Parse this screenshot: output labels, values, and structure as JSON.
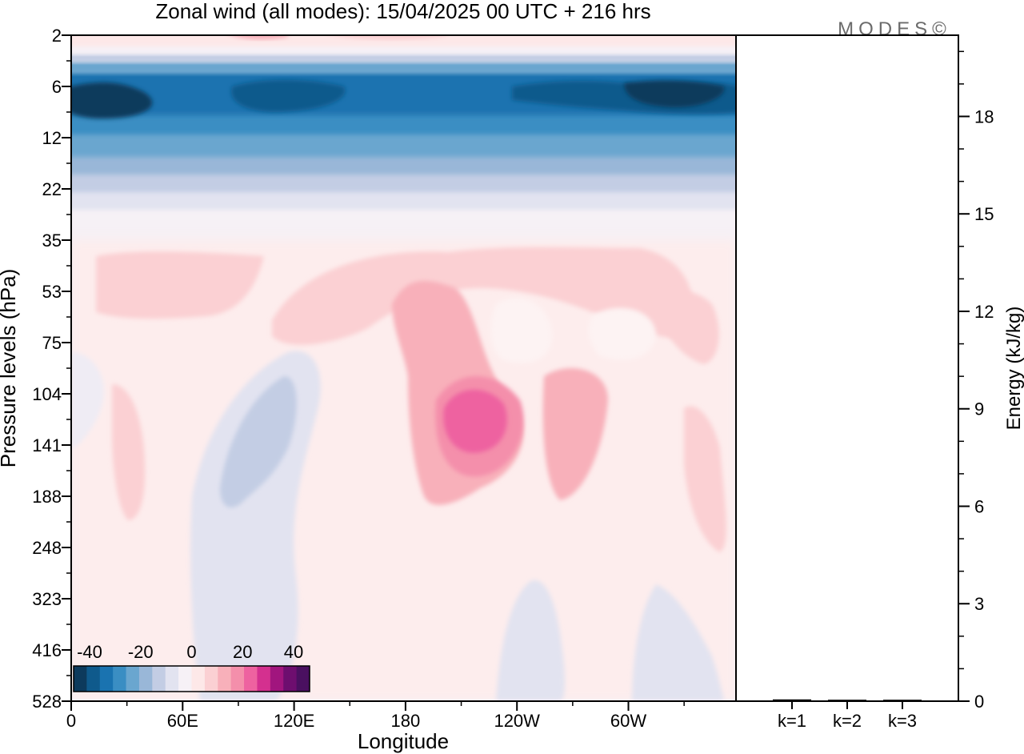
{
  "title": "Zonal wind (all modes):  15/04/2025  00 UTC  + 216 hrs",
  "logo": "MODES©",
  "chart_data": [
    {
      "type": "heatmap",
      "xlabel": "Longitude",
      "ylabel": "Pressure levels (hPa)",
      "x_ticks": [
        "0",
        "60E",
        "120E",
        "180",
        "120W",
        "60W"
      ],
      "y_ticks": [
        "2",
        "6",
        "12",
        "22",
        "35",
        "53",
        "75",
        "104",
        "141",
        "188",
        "248",
        "323",
        "416",
        "528"
      ],
      "colorbar": {
        "labels": [
          "-40",
          "-20",
          "0",
          "20",
          "40"
        ],
        "colors": [
          "#0d3a5c",
          "#0f5a8c",
          "#1a73b0",
          "#3a8ec3",
          "#6aa6cf",
          "#99b7d8",
          "#c3cde4",
          "#e2e3f0",
          "#f6f1f6",
          "#fde8e8",
          "#fbd0d3",
          "#f8b0ba",
          "#f48fab",
          "#ee62a0",
          "#d4308f",
          "#a1157e",
          "#6e0e6f",
          "#4a1060"
        ]
      },
      "regions": [
        {
          "name": "stratospheric easterlies",
          "value": -35,
          "color": "#0f5a8c"
        },
        {
          "name": "upper easterly core",
          "value": -40,
          "color": "#0d3a5c"
        },
        {
          "name": "upper westerly near 2 hPa",
          "value": 15,
          "color": "#f8b0ba"
        },
        {
          "name": "jet near 180-150W at 141 hPa",
          "value": 25,
          "color": "#ee62a0"
        },
        {
          "name": "weak easterly 60E-120E tropo",
          "value": -8,
          "color": "#c3cde4"
        }
      ]
    },
    {
      "type": "bar",
      "categories": [
        "k=1",
        "k=2",
        "k=3"
      ],
      "values": [
        0.03,
        0.02,
        0.02
      ],
      "ylabel": "Energy (kJ/kg)",
      "ylim": [
        0,
        20.5
      ],
      "y_ticks": [
        "0",
        "3",
        "6",
        "9",
        "12",
        "15",
        "18"
      ]
    }
  ]
}
